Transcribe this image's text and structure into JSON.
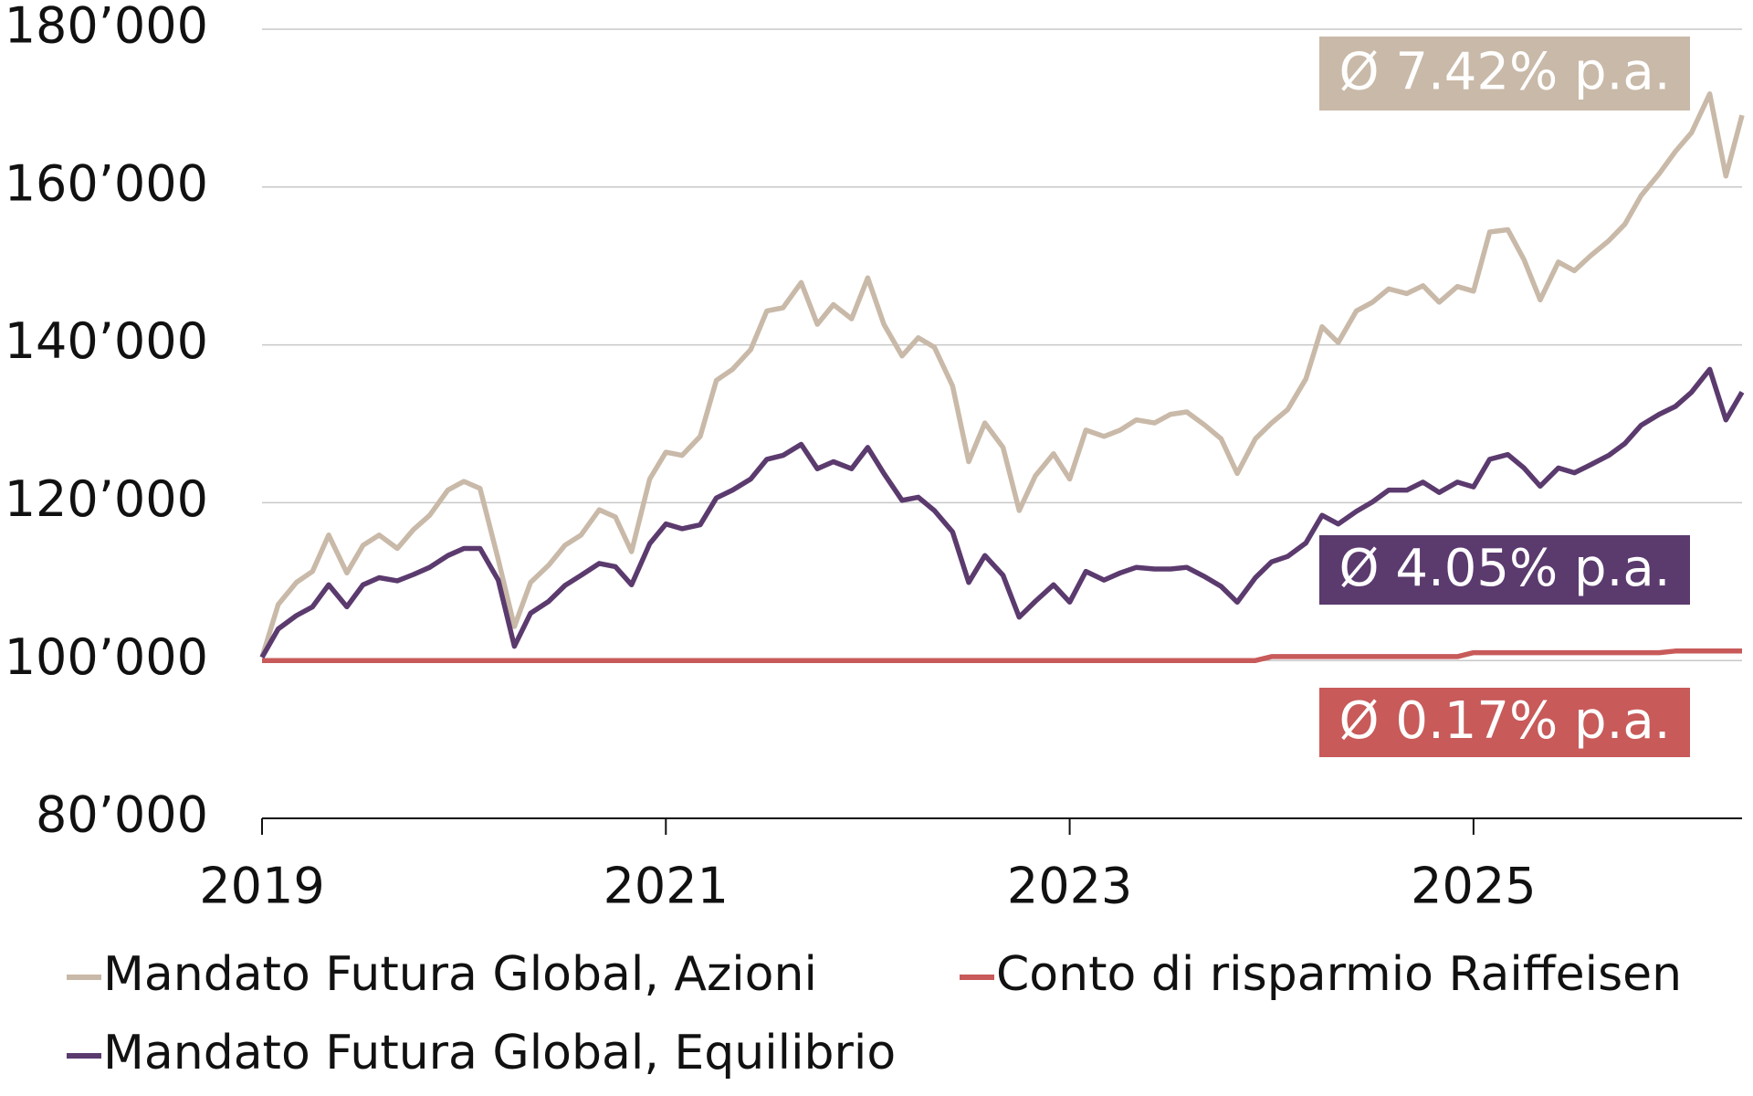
{
  "chart_data": {
    "type": "line",
    "x": [
      2019.0,
      2019.08,
      2019.17,
      2019.25,
      2019.33,
      2019.42,
      2019.5,
      2019.58,
      2019.67,
      2019.75,
      2019.83,
      2019.92,
      2020.0,
      2020.08,
      2020.17,
      2020.25,
      2020.33,
      2020.42,
      2020.5,
      2020.58,
      2020.67,
      2020.75,
      2020.83,
      2020.92,
      2021.0,
      2021.08,
      2021.17,
      2021.25,
      2021.33,
      2021.42,
      2021.5,
      2021.58,
      2021.67,
      2021.75,
      2021.83,
      2021.92,
      2022.0,
      2022.08,
      2022.17,
      2022.25,
      2022.33,
      2022.42,
      2022.5,
      2022.58,
      2022.67,
      2022.75,
      2022.83,
      2022.92,
      2023.0,
      2023.08,
      2023.17,
      2023.25,
      2023.33,
      2023.42,
      2023.5,
      2023.58,
      2023.67,
      2023.75,
      2023.83,
      2023.92,
      2024.0,
      2024.08,
      2024.17,
      2024.25,
      2024.33,
      2024.42,
      2024.5,
      2024.58,
      2024.67,
      2024.75,
      2024.83,
      2024.92,
      2025.0,
      2025.08,
      2025.17,
      2025.25,
      2025.33,
      2025.42,
      2025.5,
      2025.58,
      2025.67,
      2025.75,
      2025.83,
      2025.92,
      2026.0,
      2026.08,
      2026.17,
      2026.25,
      2026.33
    ],
    "series": [
      {
        "name": "Mandato Futura Global, Azioni",
        "color": "#c9b9a8",
        "values": [
          100400,
          107100,
          109900,
          111300,
          115900,
          111100,
          114600,
          115900,
          114200,
          116600,
          118400,
          121600,
          122700,
          121800,
          112800,
          104300,
          109900,
          112100,
          114600,
          115900,
          119100,
          118200,
          113800,
          123000,
          126400,
          126000,
          128400,
          135500,
          136900,
          139400,
          144300,
          144700,
          147900,
          142600,
          145100,
          143300,
          148500,
          142600,
          138600,
          140900,
          139700,
          134800,
          125200,
          130100,
          127000,
          119000,
          123400,
          126200,
          123000,
          129200,
          128400,
          129200,
          130500,
          130100,
          131200,
          131500,
          129800,
          128100,
          123700,
          128100,
          130100,
          131800,
          135700,
          142300,
          140300,
          144300,
          145400,
          147100,
          146500,
          147500,
          145400,
          147400,
          146800,
          154300,
          154600,
          150800,
          145700,
          150500,
          149400,
          151300,
          153200,
          155300,
          158900,
          161700,
          164500,
          166900,
          171800,
          161400,
          169100
        ]
      },
      {
        "name": "Conto di risparmio Raiffeisen",
        "color": "#c85a5a",
        "values": [
          100000,
          100000,
          100000,
          100000,
          100000,
          100000,
          100000,
          100000,
          100000,
          100000,
          100000,
          100000,
          100000,
          100000,
          100000,
          100000,
          100000,
          100000,
          100000,
          100000,
          100000,
          100000,
          100000,
          100000,
          100000,
          100000,
          100000,
          100000,
          100000,
          100000,
          100000,
          100000,
          100000,
          100000,
          100000,
          100000,
          100000,
          100000,
          100000,
          100000,
          100000,
          100000,
          100000,
          100000,
          100000,
          100000,
          100000,
          100000,
          100000,
          100000,
          100000,
          100000,
          100000,
          100000,
          100000,
          100000,
          100000,
          100000,
          100000,
          100000,
          100500,
          100500,
          100500,
          100500,
          100500,
          100500,
          100500,
          100500,
          100500,
          100500,
          100500,
          100500,
          101000,
          101000,
          101000,
          101000,
          101000,
          101000,
          101000,
          101000,
          101000,
          101000,
          101000,
          101000,
          101200,
          101200,
          101200,
          101200,
          101200
        ]
      },
      {
        "name": "Mandato Futura Global, Equilibrio",
        "color": "#5b3a6e",
        "values": [
          100400,
          104000,
          105700,
          106800,
          109600,
          106800,
          109600,
          110500,
          110100,
          110900,
          111800,
          113300,
          114200,
          114200,
          110200,
          101800,
          106000,
          107500,
          109500,
          110800,
          112300,
          111900,
          109600,
          114800,
          117300,
          116700,
          117200,
          120600,
          121600,
          123000,
          125500,
          126000,
          127400,
          124300,
          125200,
          124300,
          127000,
          123700,
          120300,
          120700,
          119000,
          116300,
          109900,
          113300,
          110800,
          105500,
          107500,
          109600,
          107400,
          111300,
          110200,
          111100,
          111800,
          111600,
          111600,
          111800,
          110600,
          109400,
          107400,
          110500,
          112500,
          113200,
          114900,
          118400,
          117300,
          118900,
          120100,
          121600,
          121600,
          122600,
          121300,
          122600,
          122000,
          125500,
          126100,
          124400,
          122100,
          124400,
          123800,
          124800,
          126000,
          127500,
          129800,
          131200,
          132200,
          134000,
          136900,
          130500,
          134000
        ]
      }
    ],
    "annotations": [
      {
        "text": "Ø 7.42% p.a.",
        "color": "#c9b9a8"
      },
      {
        "text": "Ø 4.05% p.a.",
        "color": "#5b3a6e"
      },
      {
        "text": "Ø 0.17% p.a.",
        "color": "#c85a5a"
      }
    ],
    "xlim": [
      2019,
      2026.33
    ],
    "xticks": [
      2019,
      2021,
      2023,
      2025
    ],
    "ylim": [
      80000,
      180000
    ],
    "yticks": [
      {
        "value": 80000,
        "label": "80’000"
      },
      {
        "value": 100000,
        "label": "100’000"
      },
      {
        "value": 120000,
        "label": "120’000"
      },
      {
        "value": 140000,
        "label": "140’000"
      },
      {
        "value": 160000,
        "label": "160’000"
      },
      {
        "value": 180000,
        "label": "180’000"
      }
    ],
    "grid": true
  }
}
